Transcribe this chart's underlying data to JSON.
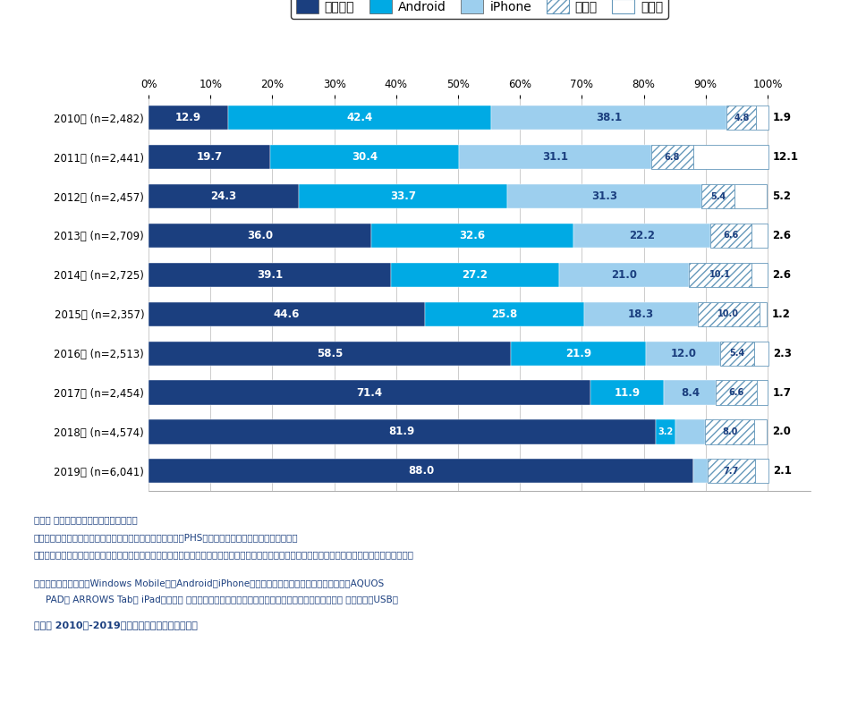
{
  "years": [
    "2010年 (n=2,482)",
    "2011年 (n=2,441)",
    "2012年 (n=2,457)",
    "2013年 (n=2,709)",
    "2014年 (n=2,725)",
    "2015年 (n=2,357)",
    "2016年 (n=2,513)",
    "2017年 (n=2,454)",
    "2018年 (n=4,574)",
    "2019年 (n=6,041)"
  ],
  "keitai": [
    88.0,
    81.9,
    71.4,
    58.5,
    44.6,
    39.1,
    36.0,
    24.3,
    19.7,
    12.9
  ],
  "android": [
    0.0,
    3.2,
    11.9,
    21.9,
    25.8,
    27.2,
    32.6,
    33.7,
    30.4,
    42.4
  ],
  "iphone": [
    2.3,
    4.8,
    8.4,
    12.0,
    18.3,
    21.0,
    22.2,
    31.3,
    31.1,
    38.1
  ],
  "senior": [
    7.7,
    8.0,
    6.6,
    5.4,
    10.0,
    10.1,
    6.6,
    5.4,
    6.8,
    4.8
  ],
  "other": [
    2.1,
    2.0,
    1.7,
    2.3,
    1.2,
    2.6,
    2.6,
    5.2,
    12.1,
    1.9
  ],
  "color_keitai": "#1b3f7f",
  "color_android": "#00aae4",
  "color_iphone": "#9dcfee",
  "legend_labels": [
    "ケータイ",
    "Android",
    "iPhone",
    "シニア",
    "その他"
  ],
  "notes_line1": "注１： スマホ・ケータイ所有者が回答。",
  "notes_line2": "注２：「ケータイ」は「シニア向け以外の従来のケータイ（PHSまたはいわゆるガラケー）」を集計。",
  "notes_line3": "注３：「シニア」は「シニア向けの従来のケータイ（らくらくホンなど）」「シニア向けのスマートフォン（らくらくスマートフォンなど）」を合計。",
  "notes_line3b": "        フォンなど）」を合計。",
  "notes_line4a": "注４：「その他」は「Windows MobileなどAndroidやiPhone以外のスマートフォン」「タブレット（AQUOS",
  "notes_line4b": "    PAD， ARROWS Tab， iPadなどで， 通信回線契約をしているものに限る）」「モバイルルーター， データ通信USB」",
  "source": "出所： 2010年-2019年一般向けモバイル動向調査"
}
